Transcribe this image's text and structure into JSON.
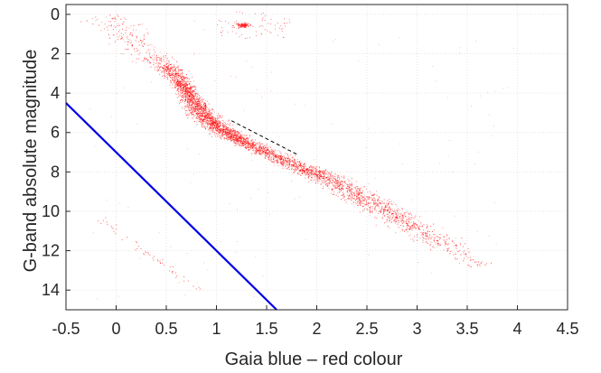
{
  "chart_data": {
    "type": "scatter",
    "title": "",
    "xlabel": "Gaia blue – red colour",
    "ylabel": "G-band absolute magnitude",
    "xlim": [
      -0.5,
      4.5
    ],
    "ylim": [
      15,
      -0.5
    ],
    "y_axis_inverted": true,
    "grid": true,
    "legend": "none",
    "xticks": [
      -0.5,
      0,
      0.5,
      1,
      1.5,
      2,
      2.5,
      3,
      3.5,
      4,
      4.5
    ],
    "xtick_labels": [
      "-0.5",
      "0",
      "0.5",
      "1",
      "1.5",
      "2",
      "2.5",
      "3",
      "3.5",
      "4",
      "4.5"
    ],
    "yticks": [
      0,
      2,
      4,
      6,
      8,
      10,
      12,
      14
    ],
    "ytick_labels": [
      "0",
      "2",
      "4",
      "6",
      "8",
      "10",
      "12",
      "14"
    ],
    "series": [
      {
        "kind": "scatter-density",
        "color": "#ff0000",
        "ridge": [
          {
            "x": -0.05,
            "y": 0.0
          },
          {
            "x": 0.1,
            "y": 1.0
          },
          {
            "x": 0.3,
            "y": 2.0
          },
          {
            "x": 0.5,
            "y": 2.6
          },
          {
            "x": 0.62,
            "y": 3.3
          },
          {
            "x": 0.75,
            "y": 4.3
          },
          {
            "x": 0.85,
            "y": 5.0
          },
          {
            "x": 1.0,
            "y": 5.7
          },
          {
            "x": 1.2,
            "y": 6.3
          },
          {
            "x": 1.5,
            "y": 7.0
          },
          {
            "x": 1.8,
            "y": 7.7
          },
          {
            "x": 2.1,
            "y": 8.3
          },
          {
            "x": 2.4,
            "y": 9.2
          },
          {
            "x": 2.7,
            "y": 10.0
          },
          {
            "x": 3.0,
            "y": 10.9
          },
          {
            "x": 3.3,
            "y": 11.8
          },
          {
            "x": 3.6,
            "y": 12.8
          }
        ]
      },
      {
        "kind": "line",
        "color": "#000000",
        "dash": true,
        "points": [
          {
            "x": 1.15,
            "y": 5.4
          },
          {
            "x": 1.8,
            "y": 7.1
          }
        ]
      },
      {
        "kind": "line",
        "color": "#0000e6",
        "points": [
          {
            "x": -0.5,
            "y": 4.5
          },
          {
            "x": 1.6,
            "y": 15.0
          }
        ]
      }
    ]
  }
}
